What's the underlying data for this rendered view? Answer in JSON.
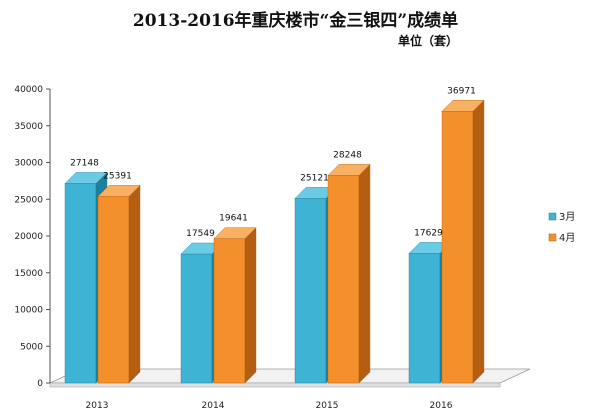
{
  "chart_data": {
    "type": "bar",
    "title": "2013-2016年重庆楼市“金三银四”成绩单",
    "subtitle": "单位（套）",
    "categories": [
      "2013",
      "2014",
      "2015",
      "2016"
    ],
    "series": [
      {
        "name": "3月",
        "values": [
          27148,
          17549,
          25121,
          17629
        ],
        "color_front": "#3fb3d3",
        "color_side": "#1f7f9c",
        "color_top": "#6ccbe4"
      },
      {
        "name": "4月",
        "values": [
          25391,
          19641,
          28248,
          36971
        ],
        "color_front": "#f4902b",
        "color_side": "#b35e10",
        "color_top": "#f9b062"
      }
    ],
    "ylim": [
      0,
      40000
    ],
    "yticks": [
      0,
      5000,
      10000,
      15000,
      20000,
      25000,
      30000,
      35000,
      40000
    ],
    "ytick_labels": [
      "0",
      "5000",
      "10000",
      "15000",
      "20000",
      "25000",
      "30000",
      "35000",
      "40000"
    ],
    "xlabel": "",
    "ylabel": "",
    "grid": false,
    "legend_position": "right",
    "style": "3d-column"
  }
}
